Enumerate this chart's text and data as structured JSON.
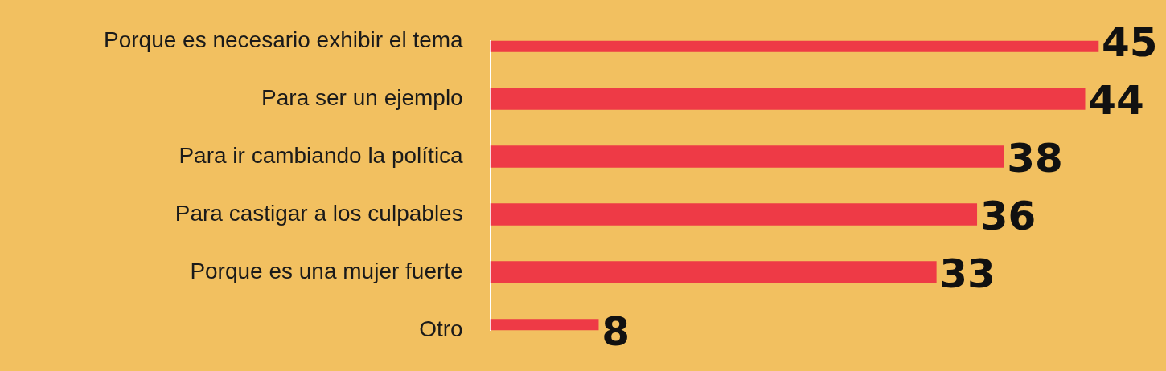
{
  "chart_data": {
    "type": "bar",
    "orientation": "horizontal",
    "categories": [
      "Porque es necesario exhibir el tema",
      "Para ser un ejemplo",
      "Para ir cambiando la política",
      "Para castigar a los culpables",
      "Porque es una mujer fuerte",
      "Otro"
    ],
    "values": [
      45,
      44,
      38,
      36,
      33,
      8
    ],
    "color": "#ee3a46",
    "tick_labels": "y",
    "data_labels": true
  }
}
